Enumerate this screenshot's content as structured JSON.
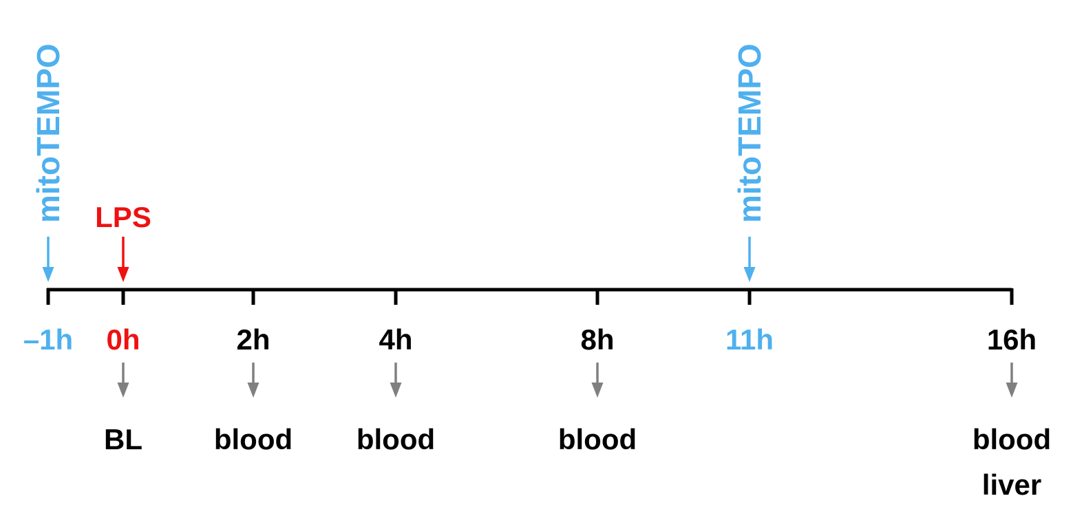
{
  "colors": {
    "line": "#000000",
    "mito": "#4fb0ee",
    "lps": "#ee1111",
    "sample_arrow": "#808080",
    "label": "#000000"
  },
  "ticks": [
    {
      "label": "–1h",
      "color": "mito"
    },
    {
      "label": "0h",
      "color": "lps"
    },
    {
      "label": "2h",
      "color": "label"
    },
    {
      "label": "4h",
      "color": "label"
    },
    {
      "label": "8h",
      "color": "label"
    },
    {
      "label": "11h",
      "color": "mito"
    },
    {
      "label": "16h",
      "color": "label"
    }
  ],
  "treatments": [
    {
      "label": "mitoTEMPO",
      "at": "–1h",
      "color": "mito",
      "vertical": true
    },
    {
      "label": "LPS",
      "at": "0h",
      "color": "lps",
      "vertical": false
    },
    {
      "label": "mitoTEMPO",
      "at": "11h",
      "color": "mito",
      "vertical": true
    }
  ],
  "samples": [
    {
      "at": "0h",
      "lines": [
        "BL"
      ]
    },
    {
      "at": "2h",
      "lines": [
        "blood"
      ]
    },
    {
      "at": "4h",
      "lines": [
        "blood"
      ]
    },
    {
      "at": "8h",
      "lines": [
        "blood"
      ]
    },
    {
      "at": "16h",
      "lines": [
        "blood",
        "liver"
      ]
    }
  ]
}
